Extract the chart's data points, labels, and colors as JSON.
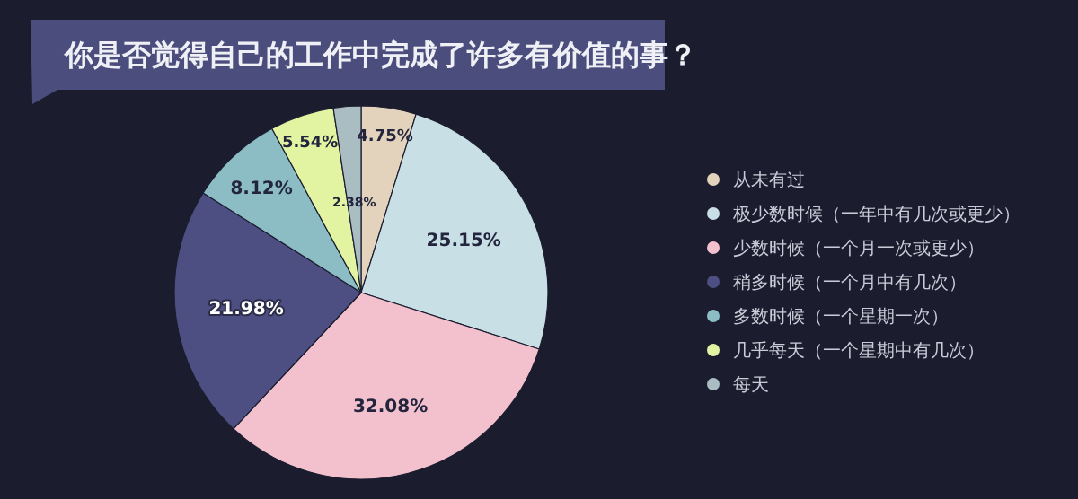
{
  "chart_data": {
    "type": "pie",
    "title": "你是否觉得自己的工作中完成了许多有价值的事？",
    "categories": [
      "从未有过",
      "极少数时候（一年中有几次或更少）",
      "少数时候（一个月一次或更少）",
      "稍多时候（一个月中有几次）",
      "多数时候（一个星期一次）",
      "几乎每天（一个星期中有几次）",
      "每天"
    ],
    "values": [
      4.75,
      25.15,
      32.08,
      21.98,
      8.12,
      5.54,
      2.38
    ],
    "colors": [
      "#e3d3bd",
      "#c9dfe6",
      "#f3c1cd",
      "#4d4f82",
      "#8cbcc4",
      "#e2f4a2",
      "#a9bdc3"
    ],
    "value_labels": [
      "4.75%",
      "25.15%",
      "32.08%",
      "21.98%",
      "8.12%",
      "5.54%",
      "2.38%"
    ],
    "legend": "right"
  }
}
